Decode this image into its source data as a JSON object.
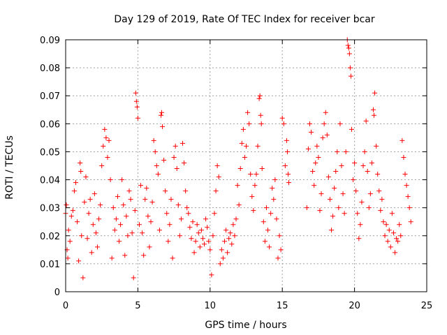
{
  "chart_data": {
    "type": "scatter",
    "title": "Day 129 of 2019, Rate Of TEC Index for receiver bcar",
    "xlabel": "GPS time / hours",
    "ylabel": "ROTI / TECUs",
    "xlim": [
      0,
      25
    ],
    "ylim": [
      0,
      0.09
    ],
    "grid": true,
    "marker": "plus",
    "series_color": "#ff0000",
    "x_ticks": [
      0,
      5,
      10,
      15,
      20,
      25
    ],
    "x_tick_labels": [
      "0",
      "5",
      "10",
      "15",
      "20",
      "25"
    ],
    "y_ticks": [
      0,
      0.01,
      0.02,
      0.03,
      0.04,
      0.05,
      0.06,
      0.07,
      0.08,
      0.09
    ],
    "y_tick_labels": [
      "0",
      "0.01",
      "0.02",
      "0.03",
      "0.04",
      "0.05",
      "0.06",
      "0.07",
      "0.08",
      "0.09"
    ],
    "data_gap_hours": [
      15.5,
      16.6
    ],
    "series": [
      {
        "name": "ROTI",
        "points": [
          [
            0.0,
            0.028
          ],
          [
            0.05,
            0.031
          ],
          [
            0.1,
            0.015
          ],
          [
            0.15,
            0.012
          ],
          [
            0.2,
            0.022
          ],
          [
            0.3,
            0.018
          ],
          [
            0.4,
            0.027
          ],
          [
            0.5,
            0.029
          ],
          [
            0.6,
            0.036
          ],
          [
            0.7,
            0.039
          ],
          [
            0.8,
            0.025
          ],
          [
            0.9,
            0.011
          ],
          [
            1.0,
            0.046
          ],
          [
            1.05,
            0.043
          ],
          [
            1.1,
            0.02
          ],
          [
            1.2,
            0.005
          ],
          [
            1.3,
            0.032
          ],
          [
            1.4,
            0.041
          ],
          [
            1.5,
            0.019
          ],
          [
            1.6,
            0.028
          ],
          [
            1.7,
            0.033
          ],
          [
            1.8,
            0.014
          ],
          [
            1.9,
            0.024
          ],
          [
            2.0,
            0.035
          ],
          [
            2.1,
            0.021
          ],
          [
            2.2,
            0.016
          ],
          [
            2.3,
            0.026
          ],
          [
            2.4,
            0.031
          ],
          [
            2.5,
            0.045
          ],
          [
            2.6,
            0.052
          ],
          [
            2.7,
            0.058
          ],
          [
            2.8,
            0.055
          ],
          [
            2.9,
            0.048
          ],
          [
            3.0,
            0.054
          ],
          [
            3.1,
            0.04
          ],
          [
            3.2,
            0.012
          ],
          [
            3.3,
            0.03
          ],
          [
            3.4,
            0.022
          ],
          [
            3.5,
            0.026
          ],
          [
            3.6,
            0.034
          ],
          [
            3.7,
            0.018
          ],
          [
            3.8,
            0.024
          ],
          [
            3.9,
            0.04
          ],
          [
            4.0,
            0.031
          ],
          [
            4.1,
            0.013
          ],
          [
            4.2,
            0.027
          ],
          [
            4.3,
            0.02
          ],
          [
            4.4,
            0.036
          ],
          [
            4.5,
            0.033
          ],
          [
            4.6,
            0.021
          ],
          [
            4.7,
            0.005
          ],
          [
            4.8,
            0.029
          ],
          [
            4.85,
            0.071
          ],
          [
            4.9,
            0.068
          ],
          [
            4.95,
            0.066
          ],
          [
            5.0,
            0.062
          ],
          [
            5.1,
            0.024
          ],
          [
            5.2,
            0.038
          ],
          [
            5.3,
            0.021
          ],
          [
            5.4,
            0.013
          ],
          [
            5.5,
            0.033
          ],
          [
            5.6,
            0.037
          ],
          [
            5.7,
            0.027
          ],
          [
            5.8,
            0.016
          ],
          [
            5.9,
            0.025
          ],
          [
            6.0,
            0.032
          ],
          [
            6.1,
            0.054
          ],
          [
            6.2,
            0.05
          ],
          [
            6.3,
            0.045
          ],
          [
            6.4,
            0.042
          ],
          [
            6.5,
            0.022
          ],
          [
            6.6,
            0.063
          ],
          [
            6.65,
            0.064
          ],
          [
            6.7,
            0.059
          ],
          [
            6.8,
            0.047
          ],
          [
            6.9,
            0.036
          ],
          [
            7.0,
            0.028
          ],
          [
            7.1,
            0.018
          ],
          [
            7.2,
            0.024
          ],
          [
            7.3,
            0.033
          ],
          [
            7.4,
            0.012
          ],
          [
            7.5,
            0.048
          ],
          [
            7.6,
            0.052
          ],
          [
            7.7,
            0.044
          ],
          [
            7.8,
            0.031
          ],
          [
            7.9,
            0.02
          ],
          [
            8.0,
            0.026
          ],
          [
            8.1,
            0.053
          ],
          [
            8.2,
            0.046
          ],
          [
            8.3,
            0.036
          ],
          [
            8.4,
            0.03
          ],
          [
            8.5,
            0.028
          ],
          [
            8.6,
            0.023
          ],
          [
            8.7,
            0.019
          ],
          [
            8.8,
            0.025
          ],
          [
            8.9,
            0.014
          ],
          [
            9.0,
            0.018
          ],
          [
            9.1,
            0.024
          ],
          [
            9.2,
            0.021
          ],
          [
            9.3,
            0.016
          ],
          [
            9.4,
            0.022
          ],
          [
            9.5,
            0.019
          ],
          [
            9.6,
            0.017
          ],
          [
            9.7,
            0.026
          ],
          [
            9.8,
            0.023
          ],
          [
            9.9,
            0.018
          ],
          [
            10.0,
            0.015
          ],
          [
            10.1,
            0.006
          ],
          [
            10.2,
            0.02
          ],
          [
            10.3,
            0.028
          ],
          [
            10.4,
            0.036
          ],
          [
            10.5,
            0.045
          ],
          [
            10.6,
            0.041
          ],
          [
            10.7,
            0.01
          ],
          [
            10.8,
            0.015
          ],
          [
            10.9,
            0.012
          ],
          [
            11.0,
            0.018
          ],
          [
            11.1,
            0.022
          ],
          [
            11.2,
            0.014
          ],
          [
            11.3,
            0.019
          ],
          [
            11.4,
            0.021
          ],
          [
            11.5,
            0.017
          ],
          [
            11.6,
            0.024
          ],
          [
            11.7,
            0.02
          ],
          [
            11.8,
            0.026
          ],
          [
            11.9,
            0.038
          ],
          [
            12.0,
            0.031
          ],
          [
            12.1,
            0.044
          ],
          [
            12.2,
            0.053
          ],
          [
            12.3,
            0.058
          ],
          [
            12.4,
            0.048
          ],
          [
            12.5,
            0.052
          ],
          [
            12.6,
            0.064
          ],
          [
            12.7,
            0.06
          ],
          [
            12.8,
            0.042
          ],
          [
            12.9,
            0.034
          ],
          [
            13.0,
            0.029
          ],
          [
            13.1,
            0.038
          ],
          [
            13.2,
            0.042
          ],
          [
            13.3,
            0.052
          ],
          [
            13.4,
            0.069
          ],
          [
            13.45,
            0.07
          ],
          [
            13.5,
            0.063
          ],
          [
            13.55,
            0.06
          ],
          [
            13.6,
            0.044
          ],
          [
            13.7,
            0.025
          ],
          [
            13.8,
            0.018
          ],
          [
            13.9,
            0.03
          ],
          [
            14.0,
            0.022
          ],
          [
            14.1,
            0.016
          ],
          [
            14.2,
            0.028
          ],
          [
            14.3,
            0.037
          ],
          [
            14.4,
            0.033
          ],
          [
            14.5,
            0.04
          ],
          [
            14.6,
            0.026
          ],
          [
            14.7,
            0.012
          ],
          [
            14.8,
            0.02
          ],
          [
            14.9,
            0.015
          ],
          [
            15.0,
            0.062
          ],
          [
            15.1,
            0.06
          ],
          [
            15.2,
            0.045
          ],
          [
            15.3,
            0.054
          ],
          [
            15.35,
            0.05
          ],
          [
            15.4,
            0.042
          ],
          [
            15.45,
            0.039
          ],
          [
            16.7,
            0.03
          ],
          [
            16.8,
            0.051
          ],
          [
            16.9,
            0.06
          ],
          [
            17.0,
            0.057
          ],
          [
            17.1,
            0.043
          ],
          [
            17.2,
            0.038
          ],
          [
            17.3,
            0.046
          ],
          [
            17.4,
            0.052
          ],
          [
            17.5,
            0.048
          ],
          [
            17.6,
            0.029
          ],
          [
            17.7,
            0.035
          ],
          [
            17.8,
            0.055
          ],
          [
            17.9,
            0.06
          ],
          [
            18.0,
            0.064
          ],
          [
            18.1,
            0.056
          ],
          [
            18.2,
            0.041
          ],
          [
            18.3,
            0.033
          ],
          [
            18.4,
            0.022
          ],
          [
            18.5,
            0.027
          ],
          [
            18.6,
            0.037
          ],
          [
            18.7,
            0.043
          ],
          [
            18.8,
            0.05
          ],
          [
            18.9,
            0.03
          ],
          [
            19.0,
            0.06
          ],
          [
            19.1,
            0.045
          ],
          [
            19.2,
            0.035
          ],
          [
            19.3,
            0.028
          ],
          [
            19.4,
            0.05
          ],
          [
            19.5,
            0.09
          ],
          [
            19.55,
            0.088
          ],
          [
            19.6,
            0.087
          ],
          [
            19.65,
            0.085
          ],
          [
            19.7,
            0.08
          ],
          [
            19.75,
            0.077
          ],
          [
            19.8,
            0.058
          ],
          [
            19.9,
            0.04
          ],
          [
            20.0,
            0.046
          ],
          [
            20.1,
            0.036
          ],
          [
            20.2,
            0.028
          ],
          [
            20.3,
            0.019
          ],
          [
            20.4,
            0.024
          ],
          [
            20.5,
            0.032
          ],
          [
            20.6,
            0.045
          ],
          [
            20.7,
            0.05
          ],
          [
            20.8,
            0.061
          ],
          [
            20.9,
            0.043
          ],
          [
            21.0,
            0.03
          ],
          [
            21.1,
            0.035
          ],
          [
            21.2,
            0.046
          ],
          [
            21.3,
            0.065
          ],
          [
            21.35,
            0.063
          ],
          [
            21.4,
            0.071
          ],
          [
            21.5,
            0.052
          ],
          [
            21.6,
            0.042
          ],
          [
            21.7,
            0.036
          ],
          [
            21.8,
            0.029
          ],
          [
            21.9,
            0.033
          ],
          [
            22.0,
            0.025
          ],
          [
            22.1,
            0.02
          ],
          [
            22.2,
            0.024
          ],
          [
            22.3,
            0.018
          ],
          [
            22.4,
            0.022
          ],
          [
            22.5,
            0.016
          ],
          [
            22.6,
            0.028
          ],
          [
            22.7,
            0.021
          ],
          [
            22.8,
            0.014
          ],
          [
            22.9,
            0.019
          ],
          [
            23.0,
            0.018
          ],
          [
            23.1,
            0.024
          ],
          [
            23.2,
            0.02
          ],
          [
            23.3,
            0.054
          ],
          [
            23.4,
            0.048
          ],
          [
            23.5,
            0.042
          ],
          [
            23.6,
            0.038
          ],
          [
            23.7,
            0.034
          ],
          [
            23.8,
            0.03
          ],
          [
            23.9,
            0.025
          ]
        ]
      }
    ]
  }
}
